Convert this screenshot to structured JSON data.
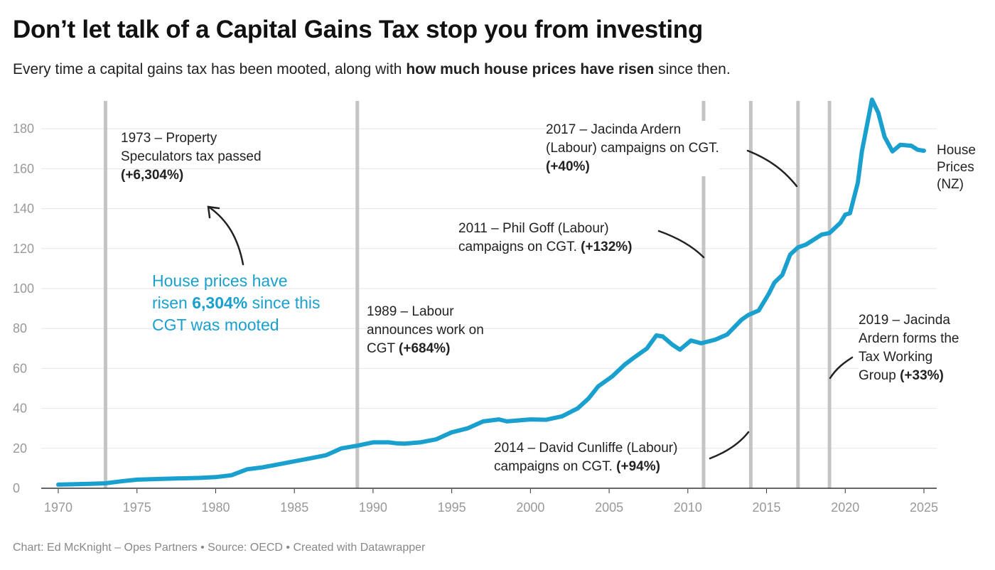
{
  "header": {
    "title": "Don’t let talk of a Capital Gains Tax stop you from investing",
    "subtitle_pre": "Every time a capital gains tax has been mooted, along with ",
    "subtitle_bold": "how much house prices have risen",
    "subtitle_post": " since then."
  },
  "annotations": {
    "a1973": {
      "l1": "1973 – Property",
      "l2": "Speculators tax passed",
      "bold": "(+6,304%)"
    },
    "blue": {
      "l1": "House prices have",
      "l2_pre": "risen ",
      "l2_bold": "6,304%",
      "l2_post": " since this",
      "l3": "CGT was mooted"
    },
    "a1989": {
      "l1": "1989 – Labour",
      "l2": "announces work on",
      "l3_pre": "CGT ",
      "bold": "(+684%)"
    },
    "a2011": {
      "l1": "2011 – Phil Goff (Labour)",
      "l2_pre": "campaigns on CGT. ",
      "bold": "(+132%)"
    },
    "a2014": {
      "l1": "2014 – David Cunliffe (Labour)",
      "l2_pre": "campaigns on CGT. ",
      "bold": "(+94%)"
    },
    "a2017": {
      "l1": "2017 – Jacinda Ardern",
      "l2": "(Labour) campaigns on CGT.",
      "bold": "(+40%)"
    },
    "a2019": {
      "l1": "2019 – Jacinda",
      "l2": "Ardern forms the",
      "l3": "Tax Working",
      "l4_pre": "Group ",
      "bold": "(+33%)"
    }
  },
  "footer": "Chart: Ed McKnight – Opes Partners • Source: OECD • Created with Datawrapper",
  "chart_data": {
    "type": "line",
    "title": "Don’t let talk of a Capital Gains Tax stop you from investing",
    "xlabel": "",
    "ylabel": "",
    "xlim": [
      1970,
      2025
    ],
    "ylim": [
      0,
      190
    ],
    "x_ticks": [
      1970,
      1975,
      1980,
      1985,
      1990,
      1995,
      2000,
      2005,
      2010,
      2015,
      2020,
      2025
    ],
    "y_ticks": [
      0,
      20,
      40,
      60,
      80,
      100,
      120,
      140,
      160,
      180
    ],
    "grid": true,
    "line_color": "#1aa0cf",
    "marker_color": "#c4c4c4",
    "event_years": [
      1973,
      1989,
      2011,
      2014,
      2017,
      2019
    ],
    "series": [
      {
        "name": "House Prices (NZ)",
        "label_lines": [
          "House",
          "Prices",
          "(NZ)"
        ],
        "points": [
          [
            1970,
            1.8
          ],
          [
            1972,
            2.2
          ],
          [
            1973,
            2.5
          ],
          [
            1974,
            3.5
          ],
          [
            1975,
            4.3
          ],
          [
            1977,
            4.8
          ],
          [
            1979,
            5.2
          ],
          [
            1980,
            5.6
          ],
          [
            1981,
            6.5
          ],
          [
            1982,
            9.5
          ],
          [
            1983,
            10.5
          ],
          [
            1984,
            12
          ],
          [
            1985,
            13.5
          ],
          [
            1986,
            15
          ],
          [
            1987,
            16.5
          ],
          [
            1988,
            20
          ],
          [
            1989,
            21.3
          ],
          [
            1990,
            23
          ],
          [
            1991,
            23
          ],
          [
            1991.5,
            22.5
          ],
          [
            1992,
            22.3
          ],
          [
            1993,
            23
          ],
          [
            1994,
            24.5
          ],
          [
            1995,
            28
          ],
          [
            1996,
            30
          ],
          [
            1997,
            33.5
          ],
          [
            1998,
            34.5
          ],
          [
            1998.5,
            33.5
          ],
          [
            2000,
            34.5
          ],
          [
            2001,
            34.3
          ],
          [
            2002,
            36
          ],
          [
            2003,
            40
          ],
          [
            2003.7,
            45
          ],
          [
            2004.3,
            51
          ],
          [
            2005.2,
            56
          ],
          [
            2006,
            62
          ],
          [
            2006.6,
            65.5
          ],
          [
            2007.4,
            70
          ],
          [
            2008,
            76.5
          ],
          [
            2008.4,
            76
          ],
          [
            2009,
            72
          ],
          [
            2009.5,
            69.4
          ],
          [
            2010.2,
            74
          ],
          [
            2010.85,
            72.6
          ],
          [
            2011.75,
            74.4
          ],
          [
            2012.5,
            77
          ],
          [
            2013.4,
            84.3
          ],
          [
            2013.85,
            86.8
          ],
          [
            2014.5,
            89
          ],
          [
            2015.15,
            97.5
          ],
          [
            2015.5,
            103
          ],
          [
            2016,
            106.8
          ],
          [
            2016.5,
            117
          ],
          [
            2017,
            120.6
          ],
          [
            2017.5,
            122
          ],
          [
            2018.5,
            127
          ],
          [
            2019,
            127.8
          ],
          [
            2019.7,
            133
          ],
          [
            2020,
            137
          ],
          [
            2020.3,
            137.7
          ],
          [
            2020.8,
            153
          ],
          [
            2021.06,
            168.7
          ],
          [
            2021.7,
            194.6
          ],
          [
            2022.1,
            188
          ],
          [
            2022.5,
            176
          ],
          [
            2023,
            168.7
          ],
          [
            2023.5,
            172
          ],
          [
            2024.2,
            171.5
          ],
          [
            2024.6,
            169.5
          ],
          [
            2025,
            169
          ]
        ]
      }
    ]
  }
}
